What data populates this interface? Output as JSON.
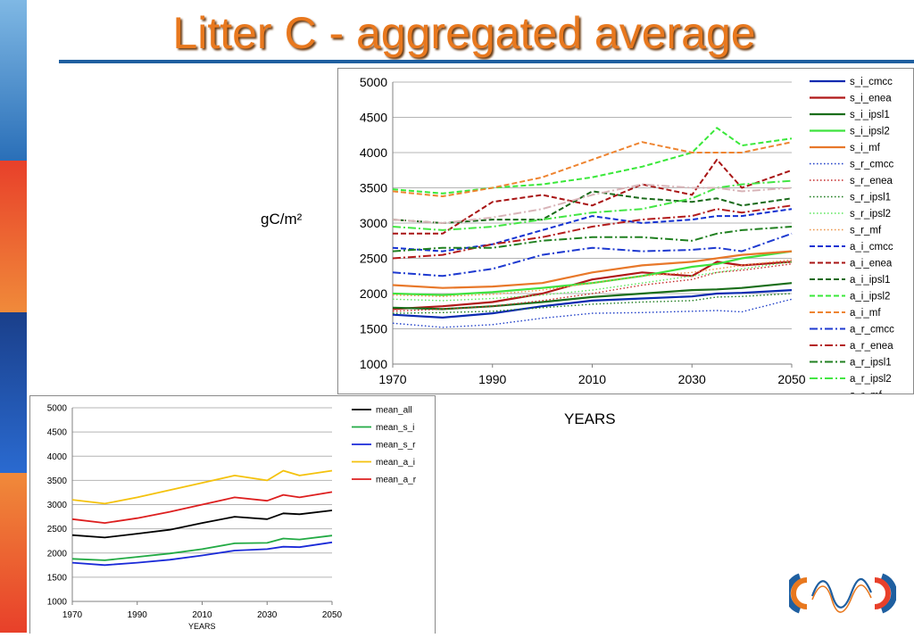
{
  "slide": {
    "title": "Litter C - aggregated average",
    "colors": {
      "title": "#e8781e",
      "rule": "#1f5fa0"
    }
  },
  "chart_data": [
    {
      "type": "line",
      "ylabel": "gC/m²",
      "xlabel": "YEARS",
      "xlim": [
        1970,
        2050
      ],
      "ylim": [
        1000,
        5000
      ],
      "x_ticks": [
        1970,
        1990,
        2010,
        2030,
        2050
      ],
      "y_ticks": [
        1000,
        1500,
        2000,
        2500,
        3000,
        3500,
        4000,
        4500,
        5000
      ],
      "grid": "horizontal",
      "legend": "right",
      "x": [
        1970,
        1980,
        1990,
        2000,
        2010,
        2020,
        2030,
        2035,
        2040,
        2050
      ],
      "series": [
        {
          "name": "s_i_cmcc",
          "color": "#0a2ab0",
          "style": "solid",
          "width": 2.2,
          "values": [
            1700,
            1660,
            1720,
            1820,
            1900,
            1930,
            1960,
            2000,
            2010,
            2050
          ]
        },
        {
          "name": "s_i_enea",
          "color": "#b01818",
          "style": "solid",
          "width": 2.2,
          "values": [
            1780,
            1820,
            1880,
            2000,
            2200,
            2300,
            2250,
            2450,
            2400,
            2450
          ]
        },
        {
          "name": "s_i_ipsl1",
          "color": "#1a6e1a",
          "style": "solid",
          "width": 2.2,
          "values": [
            1800,
            1780,
            1820,
            1880,
            1950,
            2000,
            2050,
            2060,
            2080,
            2150
          ]
        },
        {
          "name": "s_i_ipsl2",
          "color": "#3ee23e",
          "style": "solid",
          "width": 2.2,
          "values": [
            2000,
            1980,
            2020,
            2080,
            2150,
            2250,
            2380,
            2420,
            2500,
            2600
          ]
        },
        {
          "name": "s_i_mf",
          "color": "#e8782a",
          "style": "solid",
          "width": 2.2,
          "values": [
            2120,
            2080,
            2100,
            2150,
            2300,
            2400,
            2450,
            2500,
            2550,
            2600
          ]
        },
        {
          "name": "s_r_cmcc",
          "color": "#1e3ec8",
          "style": "dotted",
          "width": 1.4,
          "values": [
            1580,
            1520,
            1560,
            1650,
            1720,
            1730,
            1750,
            1760,
            1740,
            1920
          ]
        },
        {
          "name": "s_r_enea",
          "color": "#c42828",
          "style": "dotted",
          "width": 1.4,
          "values": [
            1750,
            1780,
            1820,
            1900,
            2000,
            2120,
            2200,
            2300,
            2330,
            2420
          ]
        },
        {
          "name": "s_r_ipsl1",
          "color": "#1a7a1a",
          "style": "dotted",
          "width": 1.4,
          "values": [
            1720,
            1730,
            1750,
            1800,
            1850,
            1880,
            1900,
            1950,
            1960,
            2000
          ]
        },
        {
          "name": "s_r_ipsl2",
          "color": "#5ae65a",
          "style": "dotted",
          "width": 1.4,
          "values": [
            1920,
            1900,
            1930,
            1980,
            2050,
            2150,
            2250,
            2300,
            2350,
            2450
          ]
        },
        {
          "name": "s_r_mf",
          "color": "#ec9448",
          "style": "dotted",
          "width": 1.4,
          "values": [
            1980,
            1960,
            1990,
            2050,
            2150,
            2250,
            2300,
            2350,
            2400,
            2480
          ]
        },
        {
          "name": "a_i_cmcc",
          "color": "#1432d2",
          "style": "dashed",
          "width": 2,
          "values": [
            2650,
            2600,
            2700,
            2900,
            3100,
            3000,
            3050,
            3100,
            3100,
            3200
          ]
        },
        {
          "name": "a_i_enea",
          "color": "#a81414",
          "style": "dashed",
          "width": 2,
          "values": [
            2850,
            2850,
            3300,
            3400,
            3250,
            3550,
            3400,
            3900,
            3500,
            3750
          ]
        },
        {
          "name": "a_i_ipsl1",
          "color": "#1a6a1a",
          "style": "dashed",
          "width": 2,
          "values": [
            3050,
            3000,
            3050,
            3050,
            3450,
            3350,
            3300,
            3350,
            3250,
            3350
          ]
        },
        {
          "name": "a_i_ipsl2",
          "color": "#3ae83a",
          "style": "dashed",
          "width": 2,
          "values": [
            3480,
            3420,
            3500,
            3550,
            3650,
            3800,
            4000,
            4350,
            4100,
            4200
          ]
        },
        {
          "name": "a_i_mf",
          "color": "#ee8430",
          "style": "dashed",
          "width": 2,
          "values": [
            3450,
            3380,
            3500,
            3650,
            3900,
            4150,
            4000,
            4000,
            4000,
            4150
          ]
        },
        {
          "name": "a_r_cmcc",
          "color": "#1e3ad0",
          "style": "dashdot",
          "width": 2,
          "values": [
            2300,
            2250,
            2350,
            2550,
            2650,
            2600,
            2620,
            2650,
            2600,
            2850
          ]
        },
        {
          "name": "a_r_enea",
          "color": "#b41c1c",
          "style": "dashdot",
          "width": 2,
          "values": [
            2500,
            2550,
            2700,
            2800,
            2950,
            3050,
            3100,
            3200,
            3150,
            3250
          ]
        },
        {
          "name": "a_r_ipsl1",
          "color": "#208020",
          "style": "dashdot",
          "width": 2,
          "values": [
            2600,
            2650,
            2650,
            2750,
            2800,
            2800,
            2750,
            2850,
            2900,
            2950
          ]
        },
        {
          "name": "a_r_ipsl2",
          "color": "#44e644",
          "style": "dashdot",
          "width": 2,
          "values": [
            2950,
            2900,
            2950,
            3050,
            3150,
            3200,
            3350,
            3500,
            3550,
            3600
          ]
        },
        {
          "name": "a_r_mf",
          "color": "#d8b4b8",
          "style": "dashdot",
          "width": 2,
          "values": [
            3050,
            3000,
            3080,
            3200,
            3400,
            3550,
            3500,
            3500,
            3450,
            3500
          ]
        }
      ]
    },
    {
      "type": "line",
      "xlabel": "YEARS",
      "xlim": [
        1970,
        2050
      ],
      "ylim": [
        1000,
        5000
      ],
      "x_ticks": [
        1970,
        1990,
        2010,
        2030,
        2050
      ],
      "y_ticks": [
        1000,
        1500,
        2000,
        2500,
        3000,
        3500,
        4000,
        4500,
        5000
      ],
      "grid": "horizontal",
      "legend": "right",
      "x": [
        1970,
        1980,
        1990,
        2000,
        2010,
        2020,
        2030,
        2035,
        2040,
        2050
      ],
      "series": [
        {
          "name": "mean_all",
          "color": "#000000",
          "values": [
            2370,
            2320,
            2400,
            2480,
            2620,
            2750,
            2700,
            2820,
            2800,
            2880
          ]
        },
        {
          "name": "mean_s_i",
          "color": "#22aa44",
          "values": [
            1880,
            1850,
            1920,
            1990,
            2080,
            2200,
            2210,
            2300,
            2280,
            2360
          ]
        },
        {
          "name": "mean_s_r",
          "color": "#1a2ad8",
          "values": [
            1800,
            1750,
            1800,
            1860,
            1950,
            2050,
            2080,
            2130,
            2120,
            2220
          ]
        },
        {
          "name": "mean_a_i",
          "color": "#f4c20d",
          "values": [
            3100,
            3020,
            3150,
            3300,
            3450,
            3600,
            3500,
            3700,
            3600,
            3700
          ]
        },
        {
          "name": "mean_a_r",
          "color": "#dd1f1f",
          "values": [
            2700,
            2620,
            2720,
            2850,
            3000,
            3150,
            3080,
            3200,
            3150,
            3260
          ]
        }
      ]
    }
  ]
}
